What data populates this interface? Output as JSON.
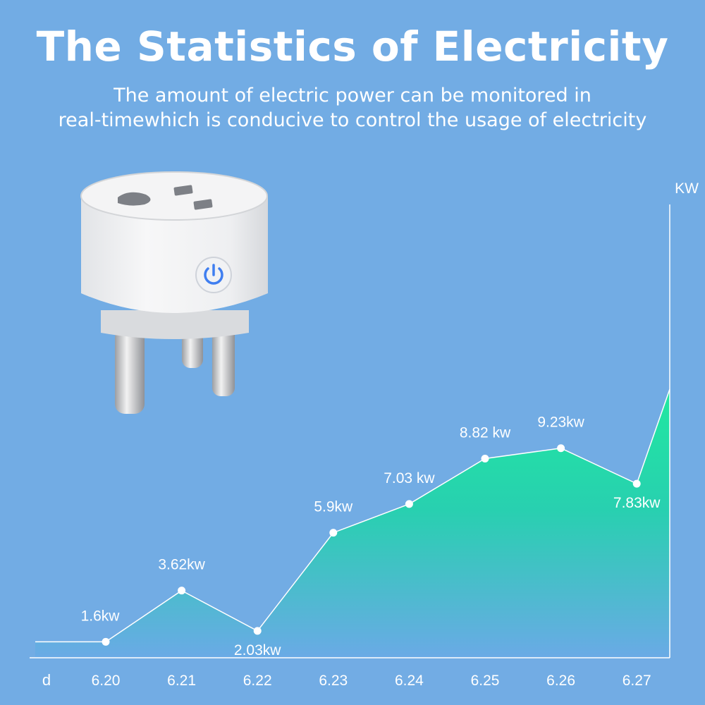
{
  "page": {
    "title": "The Statistics of Electricity",
    "subtitle_line1": "The amount of electric power can be monitored in",
    "subtitle_line2": "real-timewhich is conducive to control the usage of electricity"
  },
  "colors": {
    "background": "#72ace4",
    "area_top": "#1ee6a0",
    "area_bottom": "#6eaae8",
    "line": "#ffffff",
    "text": "#ffffff"
  },
  "chart_data": {
    "type": "area",
    "title": "",
    "xlabel": "d",
    "ylabel": "KW",
    "categories": [
      "6.20",
      "6.21",
      "6.22",
      "6.23",
      "6.24",
      "6.25",
      "6.26",
      "6.27"
    ],
    "values": [
      1.6,
      3.62,
      2.03,
      5.9,
      7.03,
      8.82,
      9.23,
      7.83
    ],
    "labels": [
      "1.6kw",
      "3.62kw",
      "2.03kw",
      "5.9kw",
      "7.03 kw",
      "8.82 kw",
      "9.23kw",
      "7.83kw"
    ],
    "ylim": [
      -2,
      18
    ],
    "grid": false,
    "legend": "none"
  }
}
